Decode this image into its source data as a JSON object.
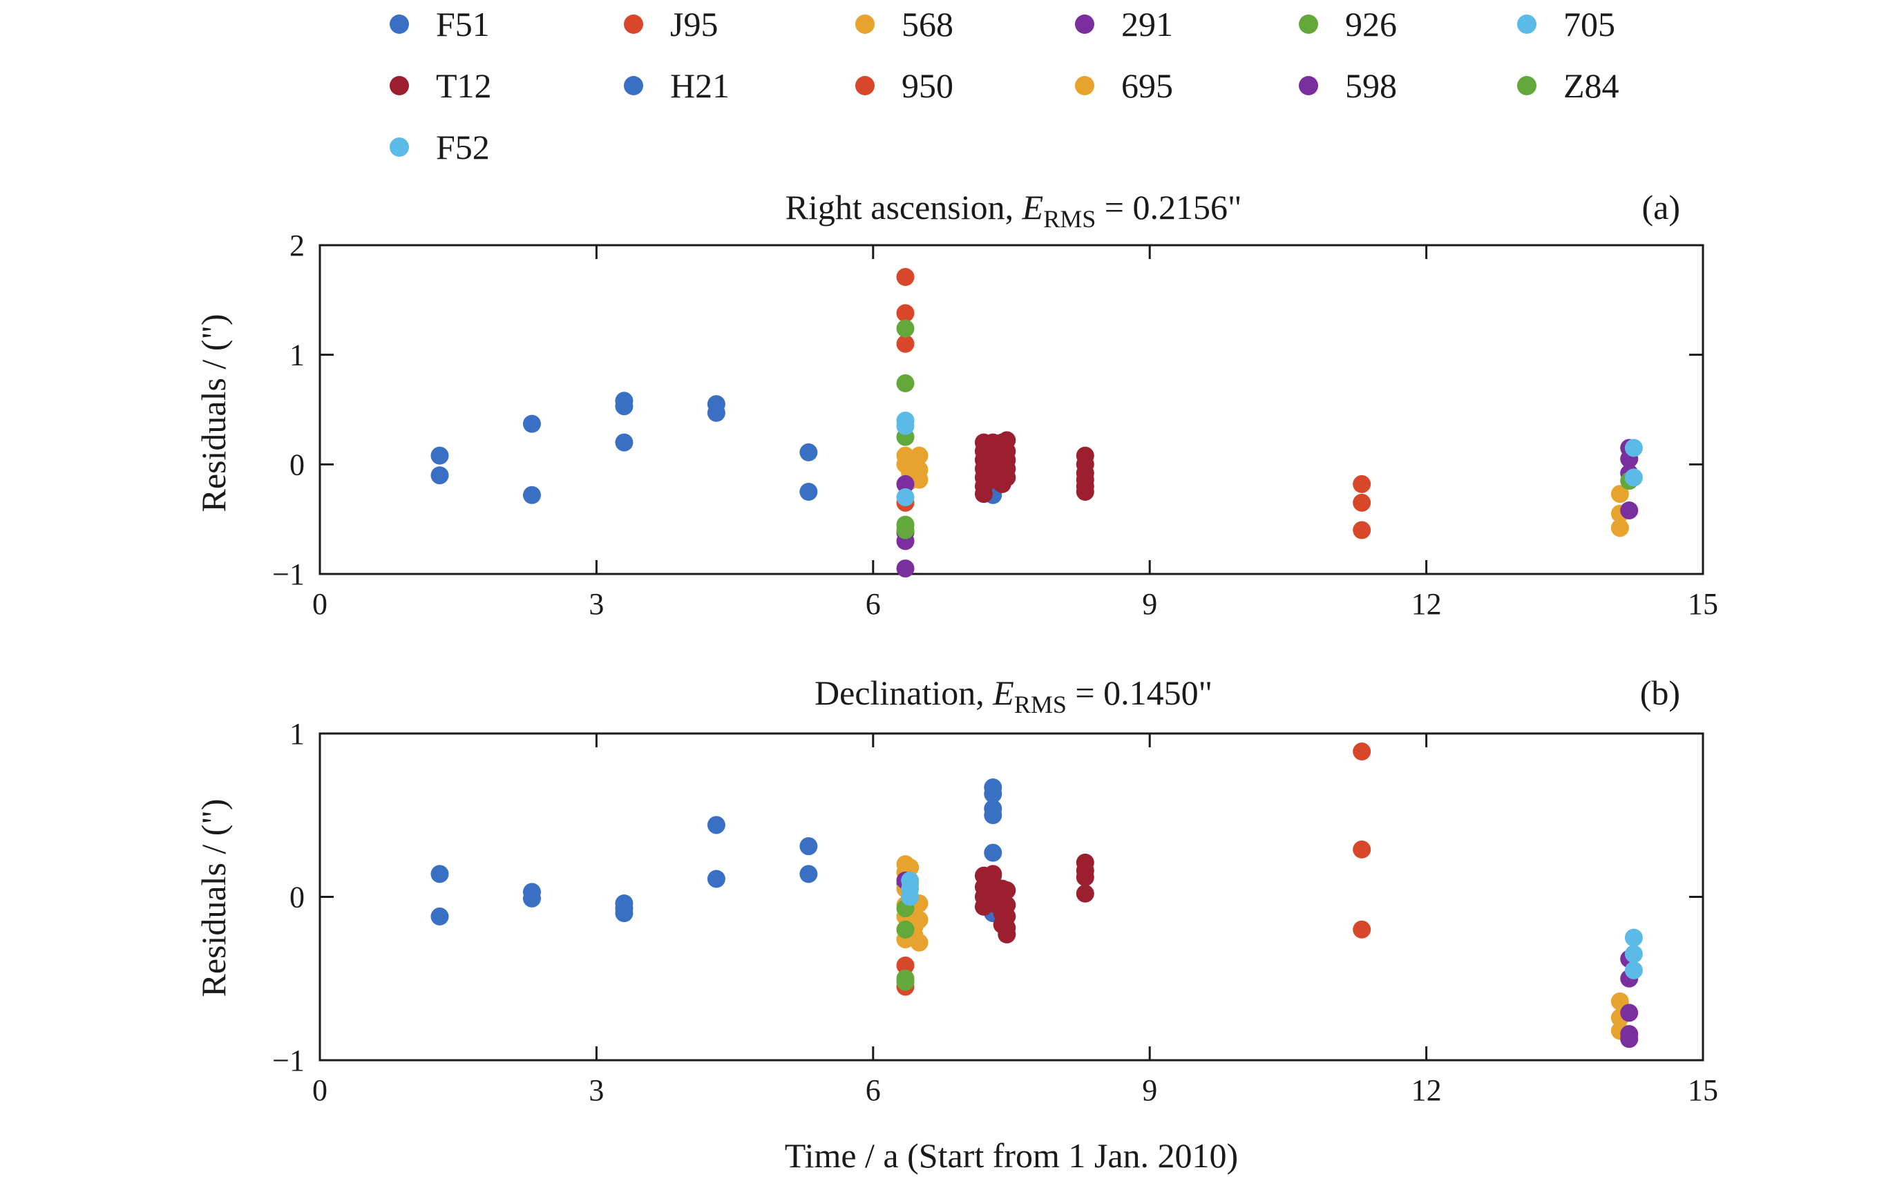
{
  "legend": [
    {
      "code": "F51",
      "color": "#3a70c4"
    },
    {
      "code": "J95",
      "color": "#d9472b"
    },
    {
      "code": "568",
      "color": "#e8a22e"
    },
    {
      "code": "291",
      "color": "#7b2e9e"
    },
    {
      "code": "926",
      "color": "#62a83a"
    },
    {
      "code": "705",
      "color": "#5bbbe6"
    },
    {
      "code": "T12",
      "color": "#9b1f2e"
    },
    {
      "code": "H21",
      "color": "#3a70c4"
    },
    {
      "code": "950",
      "color": "#d9472b"
    },
    {
      "code": "695",
      "color": "#e8a22e"
    },
    {
      "code": "598",
      "color": "#7b2e9e"
    },
    {
      "code": "Z84",
      "color": "#62a83a"
    },
    {
      "code": "F52",
      "color": "#5bbbe6"
    }
  ],
  "panel_a": {
    "title_pre": "Right ascension, ",
    "title_E": "E",
    "title_sub": "RMS",
    "title_post": " = 0.2156\"",
    "tag": "(a)"
  },
  "panel_b": {
    "title_pre": "Declination, ",
    "title_E": "E",
    "title_sub": "RMS",
    "title_post": " = 0.1450\"",
    "tag": "(b)"
  },
  "chart_data": [
    {
      "type": "scatter",
      "title": "Right ascension, E_RMS = 0.2156\"",
      "xlabel": "",
      "ylabel": "Residuals / (\")",
      "xlim": [
        0,
        15
      ],
      "ylim": [
        -1,
        2
      ],
      "xticks": [
        0,
        3,
        6,
        9,
        12,
        15
      ],
      "yticks": [
        -1,
        0,
        1,
        2
      ],
      "grid": false,
      "series": [
        {
          "name": "F51",
          "color": "#3a70c4",
          "points": [
            [
              1.3,
              0.08
            ],
            [
              1.3,
              -0.1
            ],
            [
              2.3,
              0.37
            ],
            [
              2.3,
              -0.28
            ],
            [
              3.3,
              0.58
            ],
            [
              3.3,
              0.53
            ],
            [
              3.3,
              0.2
            ],
            [
              4.3,
              0.55
            ],
            [
              4.3,
              0.47
            ],
            [
              5.3,
              0.11
            ],
            [
              5.3,
              -0.25
            ],
            [
              7.3,
              0.18
            ],
            [
              7.3,
              0.1
            ],
            [
              7.3,
              0.0
            ],
            [
              7.3,
              -0.08
            ],
            [
              7.3,
              -0.15
            ],
            [
              7.3,
              -0.22
            ],
            [
              7.3,
              -0.28
            ],
            [
              7.35,
              0.05
            ]
          ]
        },
        {
          "name": "J95",
          "color": "#d9472b",
          "points": [
            [
              6.35,
              1.71
            ],
            [
              6.35,
              1.38
            ],
            [
              6.35,
              1.1
            ],
            [
              6.35,
              -0.35
            ]
          ]
        },
        {
          "name": "568",
          "color": "#e8a22e",
          "points": [
            [
              6.35,
              0.08
            ],
            [
              6.35,
              0.0
            ],
            [
              6.4,
              -0.08
            ],
            [
              6.4,
              -0.15
            ],
            [
              6.45,
              0.05
            ],
            [
              6.45,
              -0.1
            ],
            [
              6.5,
              0.08
            ],
            [
              6.5,
              -0.05
            ],
            [
              6.5,
              -0.14
            ],
            [
              14.1,
              -0.58
            ],
            [
              14.1,
              -0.45
            ],
            [
              14.1,
              -0.27
            ]
          ]
        },
        {
          "name": "291",
          "color": "#7b2e9e",
          "points": [
            [
              6.35,
              -0.18
            ],
            [
              6.35,
              -0.62
            ],
            [
              6.35,
              -0.7
            ],
            [
              6.35,
              -0.95
            ],
            [
              14.2,
              0.15
            ],
            [
              14.2,
              0.05
            ],
            [
              14.2,
              -0.08
            ],
            [
              14.2,
              -0.42
            ]
          ]
        },
        {
          "name": "926",
          "color": "#62a83a",
          "points": [
            [
              6.35,
              1.24
            ],
            [
              6.35,
              0.74
            ],
            [
              6.35,
              0.25
            ],
            [
              6.35,
              -0.55
            ],
            [
              6.35,
              -0.6
            ],
            [
              14.2,
              -0.15
            ]
          ]
        },
        {
          "name": "705",
          "color": "#5bbbe6",
          "points": [
            [
              6.35,
              0.4
            ],
            [
              6.35,
              0.35
            ],
            [
              6.35,
              -0.3
            ],
            [
              14.25,
              0.15
            ],
            [
              14.25,
              -0.12
            ]
          ]
        },
        {
          "name": "T12",
          "color": "#9b1f2e",
          "points": [
            [
              7.2,
              0.2
            ],
            [
              7.2,
              0.12
            ],
            [
              7.2,
              0.04
            ],
            [
              7.2,
              -0.04
            ],
            [
              7.2,
              -0.12
            ],
            [
              7.2,
              -0.2
            ],
            [
              7.2,
              -0.27
            ],
            [
              7.3,
              0.2
            ],
            [
              7.3,
              0.1
            ],
            [
              7.3,
              0.02
            ],
            [
              7.3,
              -0.06
            ],
            [
              7.3,
              -0.14
            ],
            [
              7.4,
              0.2
            ],
            [
              7.4,
              0.14
            ],
            [
              7.4,
              0.06
            ],
            [
              7.4,
              0.0
            ],
            [
              7.4,
              -0.1
            ],
            [
              7.4,
              -0.18
            ],
            [
              7.45,
              0.22
            ],
            [
              7.45,
              0.12
            ],
            [
              7.45,
              0.04
            ],
            [
              7.45,
              -0.04
            ],
            [
              7.45,
              -0.12
            ],
            [
              8.3,
              0.08
            ],
            [
              8.3,
              0.0
            ],
            [
              8.3,
              -0.08
            ],
            [
              8.3,
              -0.14
            ],
            [
              8.3,
              -0.2
            ],
            [
              8.3,
              -0.25
            ]
          ]
        },
        {
          "name": "950",
          "color": "#d9472b",
          "points": [
            [
              11.3,
              -0.18
            ],
            [
              11.3,
              -0.35
            ],
            [
              11.3,
              -0.6
            ]
          ]
        }
      ]
    },
    {
      "type": "scatter",
      "title": "Declination, E_RMS = 0.1450\"",
      "xlabel": "Time / a (Start from 1 Jan. 2010)",
      "ylabel": "Residuals / (\")",
      "xlim": [
        0,
        15
      ],
      "ylim": [
        -1,
        1
      ],
      "xticks": [
        0,
        3,
        6,
        9,
        12,
        15
      ],
      "yticks": [
        -1,
        0,
        1
      ],
      "grid": false,
      "series": [
        {
          "name": "F51",
          "color": "#3a70c4",
          "points": [
            [
              1.3,
              0.14
            ],
            [
              1.3,
              -0.12
            ],
            [
              2.3,
              0.03
            ],
            [
              2.3,
              -0.01
            ],
            [
              3.3,
              -0.04
            ],
            [
              3.3,
              -0.07
            ],
            [
              3.3,
              -0.1
            ],
            [
              4.3,
              0.44
            ],
            [
              4.3,
              0.11
            ],
            [
              5.3,
              0.31
            ],
            [
              5.3,
              0.14
            ],
            [
              6.35,
              0.08
            ],
            [
              7.3,
              0.67
            ],
            [
              7.3,
              0.63
            ],
            [
              7.3,
              0.54
            ],
            [
              7.3,
              0.5
            ],
            [
              7.3,
              0.27
            ],
            [
              7.3,
              0.13
            ],
            [
              7.3,
              0.0
            ],
            [
              7.3,
              -0.1
            ]
          ]
        },
        {
          "name": "J95",
          "color": "#d9472b",
          "points": [
            [
              6.35,
              -0.42
            ],
            [
              6.35,
              -0.55
            ]
          ]
        },
        {
          "name": "568",
          "color": "#e8a22e",
          "points": [
            [
              6.35,
              0.2
            ],
            [
              6.35,
              0.15
            ],
            [
              6.35,
              0.05
            ],
            [
              6.35,
              -0.05
            ],
            [
              6.35,
              -0.12
            ],
            [
              6.35,
              -0.2
            ],
            [
              6.35,
              -0.26
            ],
            [
              6.4,
              0.18
            ],
            [
              6.4,
              0.08
            ],
            [
              6.4,
              -0.02
            ],
            [
              6.4,
              -0.14
            ],
            [
              6.45,
              -0.06
            ],
            [
              6.45,
              -0.18
            ],
            [
              6.45,
              -0.24
            ],
            [
              6.5,
              -0.04
            ],
            [
              6.5,
              -0.14
            ],
            [
              6.5,
              -0.28
            ],
            [
              14.1,
              -0.64
            ],
            [
              14.1,
              -0.74
            ],
            [
              14.1,
              -0.82
            ]
          ]
        },
        {
          "name": "291",
          "color": "#7b2e9e",
          "points": [
            [
              6.35,
              0.1
            ],
            [
              14.2,
              -0.38
            ],
            [
              14.2,
              -0.5
            ],
            [
              14.2,
              -0.71
            ],
            [
              14.2,
              -0.84
            ],
            [
              14.2,
              -0.87
            ]
          ]
        },
        {
          "name": "926",
          "color": "#62a83a",
          "points": [
            [
              6.35,
              -0.07
            ],
            [
              6.35,
              -0.2
            ],
            [
              6.35,
              -0.5
            ],
            [
              6.35,
              -0.52
            ]
          ]
        },
        {
          "name": "705",
          "color": "#5bbbe6",
          "points": [
            [
              6.4,
              0.1
            ],
            [
              6.4,
              0.05
            ],
            [
              6.4,
              0.0
            ],
            [
              14.25,
              -0.25
            ],
            [
              14.25,
              -0.35
            ],
            [
              14.25,
              -0.45
            ]
          ]
        },
        {
          "name": "T12",
          "color": "#9b1f2e",
          "points": [
            [
              7.2,
              0.13
            ],
            [
              7.2,
              0.06
            ],
            [
              7.2,
              0.0
            ],
            [
              7.2,
              -0.06
            ],
            [
              7.3,
              0.14
            ],
            [
              7.3,
              0.08
            ],
            [
              7.3,
              0.03
            ],
            [
              7.3,
              -0.04
            ],
            [
              7.4,
              0.05
            ],
            [
              7.4,
              -0.02
            ],
            [
              7.4,
              -0.1
            ],
            [
              7.4,
              -0.17
            ],
            [
              7.45,
              0.04
            ],
            [
              7.45,
              -0.05
            ],
            [
              7.45,
              -0.12
            ],
            [
              7.45,
              -0.19
            ],
            [
              7.45,
              -0.23
            ],
            [
              8.3,
              0.21
            ],
            [
              8.3,
              0.16
            ],
            [
              8.3,
              0.12
            ],
            [
              8.3,
              0.02
            ]
          ]
        },
        {
          "name": "950",
          "color": "#d9472b",
          "points": [
            [
              11.3,
              0.89
            ],
            [
              11.3,
              0.29
            ],
            [
              11.3,
              -0.2
            ]
          ]
        }
      ]
    }
  ]
}
